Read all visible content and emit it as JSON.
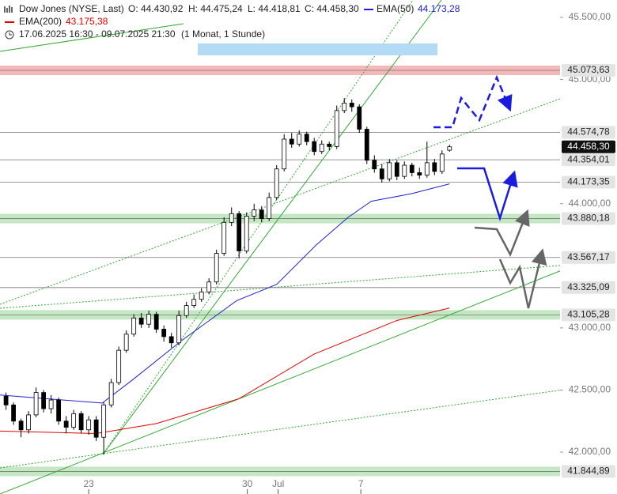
{
  "chart_data": {
    "type": "candlestick",
    "title": "Dow Jones (NYSE, Last)",
    "ohlc_labels": [
      "O: 44.430,92",
      "H: 44.475,24",
      "L: 44.418,81",
      "C: 44.458,30"
    ],
    "subtitle": "17.06.2025 16:30 - 09.07.2025 21:30",
    "period": "(1 Monat, 1 Stunde)",
    "x": [
      0,
      1,
      2,
      3,
      4,
      5,
      6,
      7,
      8,
      9,
      10,
      11,
      12,
      13,
      14,
      15,
      16,
      17,
      18,
      19,
      20,
      21,
      22,
      23,
      24,
      25,
      26,
      27,
      28,
      29,
      30,
      31,
      32,
      33,
      34,
      35,
      36,
      37,
      38,
      39,
      40,
      41,
      42,
      43,
      44,
      45,
      46,
      47,
      48,
      49,
      50,
      51,
      52,
      53,
      54,
      55,
      56,
      57,
      58,
      59
    ],
    "open": [
      42450,
      42380,
      42250,
      42180,
      42300,
      42480,
      42350,
      42420,
      42250,
      42200,
      42310,
      42180,
      42260,
      42120,
      42380,
      42560,
      42820,
      42950,
      43080,
      43030,
      43110,
      42990,
      42930,
      42880,
      43100,
      43180,
      43230,
      43290,
      43370,
      43600,
      43850,
      43920,
      43620,
      43900,
      43950,
      43880,
      44050,
      44280,
      44520,
      44480,
      44560,
      44500,
      44420,
      44480,
      44460,
      44750,
      44810,
      44780,
      44600,
      44350,
      44280,
      44200,
      44330,
      44220,
      44310,
      44250,
      44230,
      44330,
      44260,
      44430.92
    ],
    "high": [
      42480,
      42400,
      42270,
      42330,
      42520,
      42500,
      42460,
      42440,
      42290,
      42340,
      42330,
      42290,
      42290,
      42400,
      42590,
      42850,
      42980,
      43110,
      43120,
      43140,
      43130,
      43020,
      42960,
      43140,
      43210,
      43270,
      43320,
      43400,
      43630,
      43890,
      43970,
      43940,
      43930,
      44000,
      43980,
      44090,
      44310,
      44560,
      44570,
      44590,
      44580,
      44530,
      44510,
      44500,
      44790,
      44850,
      44840,
      44800,
      44620,
      44390,
      44320,
      44360,
      44350,
      44340,
      44330,
      44290,
      44500,
      44360,
      44430,
      44475.24
    ],
    "low": [
      42340,
      42220,
      42120,
      42150,
      42280,
      42320,
      42310,
      42220,
      42150,
      42180,
      42150,
      42140,
      42090,
      41980,
      42360,
      42540,
      42800,
      42930,
      43000,
      43000,
      42960,
      42890,
      42840,
      42860,
      43080,
      43160,
      43210,
      43270,
      43350,
      43580,
      43820,
      43560,
      43600,
      43860,
      43850,
      43860,
      44030,
      44260,
      44450,
      44460,
      44470,
      44390,
      44400,
      44430,
      44440,
      44730,
      44740,
      44570,
      44320,
      44250,
      44170,
      44180,
      44190,
      44200,
      44220,
      44200,
      44210,
      44230,
      44240,
      44418.81
    ],
    "close": [
      42380,
      42250,
      42180,
      42300,
      42480,
      42350,
      42420,
      42250,
      42200,
      42310,
      42180,
      42260,
      42120,
      42380,
      42560,
      42820,
      42950,
      43080,
      43030,
      43110,
      42990,
      42930,
      42880,
      43100,
      43180,
      43230,
      43290,
      43370,
      43600,
      43850,
      43920,
      43620,
      43900,
      43950,
      43880,
      44050,
      44280,
      44520,
      44480,
      44560,
      44500,
      44420,
      44480,
      44460,
      44750,
      44810,
      44780,
      44600,
      44350,
      44280,
      44200,
      44330,
      44220,
      44310,
      44250,
      44230,
      44330,
      44260,
      44400,
      44458.3
    ],
    "up_color": "#ffffff",
    "down_color": "#000000",
    "xlim": [
      -0.8,
      73.7
    ],
    "xticks": [
      {
        "value": 11,
        "label": "23"
      },
      {
        "value": 32.1,
        "label": "30"
      },
      {
        "value": 36.2,
        "label": "Jul"
      },
      {
        "value": 47.2,
        "label": "7"
      }
    ],
    "ylim": [
      41663,
      45640
    ],
    "yticks": [
      {
        "value": 45500,
        "label": "45.500,00"
      },
      {
        "value": 45000,
        "label": "45.000,00"
      },
      {
        "value": 44000,
        "label": "44.000,00"
      },
      {
        "value": 43000,
        "label": "43.000,00"
      },
      {
        "value": 42500,
        "label": "42.500,00"
      },
      {
        "value": 42000,
        "label": "42.000,00"
      }
    ],
    "overlays": [
      {
        "name": "EMA(50)",
        "color": "#2020d0",
        "value_label": "44.173,28",
        "x": [
          -0.8,
          5.5,
          12.8,
          17,
          23.4,
          30.7,
          36,
          41.3,
          45.5,
          48.6,
          53.9,
          59
        ],
        "values": [
          42460,
          42430,
          42395,
          42590,
          42900,
          43220,
          43350,
          43670,
          43890,
          44020,
          44080,
          44160
        ]
      },
      {
        "name": "EMA(200)",
        "color": "#e00000",
        "value_label": "43.175,38",
        "x": [
          -0.8,
          12,
          20,
          31,
          41,
          52,
          59
        ],
        "values": [
          42170,
          42150,
          42230,
          42430,
          42790,
          43060,
          43160
        ]
      }
    ],
    "levels": [
      {
        "value": 45073.63,
        "label": "45.073,63",
        "band": "#f5b8b8"
      },
      {
        "value": 44574.78,
        "label": "44.574,78"
      },
      {
        "value": 44354.01,
        "label": "44.354,01"
      },
      {
        "value": 44173.35,
        "label": "44.173,35"
      },
      {
        "value": 43880.18,
        "label": "43.880,18",
        "band": "#c4e8c4"
      },
      {
        "value": 43567.17,
        "label": "43.567,17"
      },
      {
        "value": 43325.09,
        "label": "43.325,09"
      },
      {
        "value": 43105.28,
        "label": "43.105,28",
        "band": "#c4e8c4"
      },
      {
        "value": 41844.89,
        "label": "41.844,89",
        "band": "#c4e8c4"
      }
    ],
    "last_price": {
      "value": 44458.3,
      "label": "44.458,30"
    }
  }
}
